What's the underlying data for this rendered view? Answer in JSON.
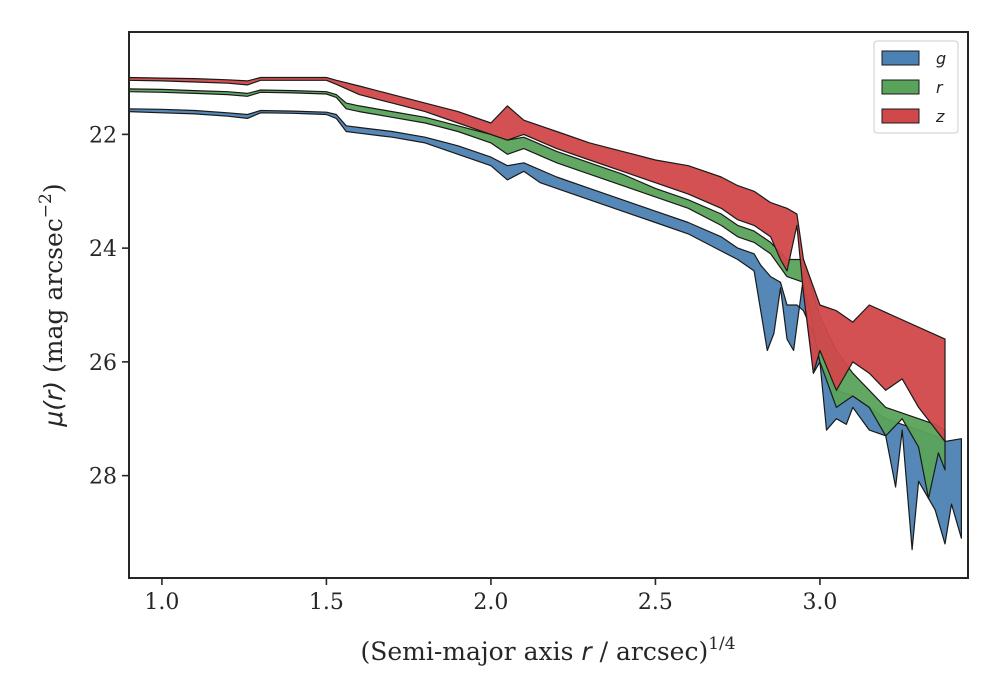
{
  "chart_data": {
    "type": "area",
    "xlabel": "(Semi-major axis r / arcsec)^{1/4}",
    "xlabel_parts": {
      "prefix": "(Semi-major axis ",
      "var": "r",
      "middle": " / arcsec)",
      "sup": "1/4"
    },
    "ylabel": "μ(r) (mag arcsec^{-2})",
    "ylabel_parts": {
      "mu": "μ(",
      "var": "r",
      "close": ")",
      "rest": " (mag arcsec",
      "sup": "−2",
      "end": ")"
    },
    "xlim": [
      0.9,
      3.45
    ],
    "ylim": [
      29.8,
      20.2
    ],
    "y_inverted": true,
    "x_ticks": [
      1.0,
      1.5,
      2.0,
      2.5,
      3.0
    ],
    "x_tick_labels": [
      "1.0",
      "1.5",
      "2.0",
      "2.5",
      "3.0"
    ],
    "y_ticks": [
      22,
      24,
      26,
      28
    ],
    "y_tick_labels": [
      "22",
      "24",
      "26",
      "28"
    ],
    "grid": false,
    "legend": {
      "position": "top-right",
      "entries": [
        "g",
        "r",
        "z"
      ]
    },
    "series": [
      {
        "name": "g",
        "color": "#4c81b3",
        "upper": [
          [
            0.9,
            21.55
          ],
          [
            1.0,
            21.56
          ],
          [
            1.1,
            21.58
          ],
          [
            1.2,
            21.62
          ],
          [
            1.26,
            21.65
          ],
          [
            1.3,
            21.58
          ],
          [
            1.4,
            21.59
          ],
          [
            1.5,
            21.61
          ],
          [
            1.53,
            21.65
          ],
          [
            1.56,
            21.85
          ],
          [
            1.6,
            21.88
          ],
          [
            1.7,
            21.95
          ],
          [
            1.8,
            22.05
          ],
          [
            1.9,
            22.2
          ],
          [
            2.0,
            22.4
          ],
          [
            2.05,
            22.55
          ],
          [
            2.1,
            22.5
          ],
          [
            2.2,
            22.75
          ],
          [
            2.3,
            22.95
          ],
          [
            2.4,
            23.15
          ],
          [
            2.5,
            23.35
          ],
          [
            2.6,
            23.55
          ],
          [
            2.7,
            23.8
          ],
          [
            2.75,
            24.0
          ],
          [
            2.8,
            24.1
          ],
          [
            2.82,
            24.3
          ],
          [
            2.85,
            24.5
          ],
          [
            2.88,
            24.6
          ],
          [
            2.9,
            25.0
          ],
          [
            2.93,
            25.0
          ],
          [
            2.95,
            25.1
          ],
          [
            2.98,
            25.5
          ],
          [
            3.0,
            26.0
          ],
          [
            3.05,
            26.5
          ],
          [
            3.1,
            26.6
          ],
          [
            3.15,
            26.8
          ],
          [
            3.2,
            27.0
          ],
          [
            3.25,
            27.1
          ],
          [
            3.3,
            27.2
          ],
          [
            3.35,
            27.3
          ],
          [
            3.38,
            27.4
          ],
          [
            3.43,
            27.35
          ]
        ],
        "lower": [
          [
            0.9,
            21.6
          ],
          [
            1.0,
            21.62
          ],
          [
            1.1,
            21.64
          ],
          [
            1.2,
            21.68
          ],
          [
            1.26,
            21.72
          ],
          [
            1.3,
            21.62
          ],
          [
            1.4,
            21.63
          ],
          [
            1.5,
            21.65
          ],
          [
            1.53,
            21.72
          ],
          [
            1.56,
            21.95
          ],
          [
            1.6,
            21.98
          ],
          [
            1.7,
            22.05
          ],
          [
            1.8,
            22.15
          ],
          [
            1.9,
            22.35
          ],
          [
            2.0,
            22.55
          ],
          [
            2.05,
            22.8
          ],
          [
            2.1,
            22.65
          ],
          [
            2.15,
            22.85
          ],
          [
            2.2,
            22.95
          ],
          [
            2.3,
            23.15
          ],
          [
            2.4,
            23.35
          ],
          [
            2.5,
            23.55
          ],
          [
            2.6,
            23.75
          ],
          [
            2.7,
            24.05
          ],
          [
            2.75,
            24.2
          ],
          [
            2.8,
            24.4
          ],
          [
            2.82,
            25.1
          ],
          [
            2.84,
            25.8
          ],
          [
            2.86,
            25.5
          ],
          [
            2.88,
            24.7
          ],
          [
            2.9,
            25.6
          ],
          [
            2.92,
            25.8
          ],
          [
            2.95,
            24.5
          ],
          [
            2.98,
            26.2
          ],
          [
            3.0,
            26.0
          ],
          [
            3.02,
            27.2
          ],
          [
            3.05,
            27.0
          ],
          [
            3.08,
            27.1
          ],
          [
            3.1,
            26.8
          ],
          [
            3.15,
            27.2
          ],
          [
            3.2,
            27.3
          ],
          [
            3.23,
            28.2
          ],
          [
            3.25,
            27.2
          ],
          [
            3.28,
            29.3
          ],
          [
            3.3,
            28.1
          ],
          [
            3.35,
            28.6
          ],
          [
            3.38,
            29.2
          ],
          [
            3.4,
            28.5
          ],
          [
            3.43,
            29.1
          ]
        ]
      },
      {
        "name": "r",
        "color": "#5aa35a",
        "upper": [
          [
            0.9,
            21.2
          ],
          [
            1.0,
            21.21
          ],
          [
            1.1,
            21.23
          ],
          [
            1.2,
            21.25
          ],
          [
            1.26,
            21.28
          ],
          [
            1.3,
            21.22
          ],
          [
            1.4,
            21.23
          ],
          [
            1.5,
            21.25
          ],
          [
            1.53,
            21.3
          ],
          [
            1.56,
            21.45
          ],
          [
            1.6,
            21.5
          ],
          [
            1.7,
            21.6
          ],
          [
            1.8,
            21.7
          ],
          [
            1.9,
            21.85
          ],
          [
            2.0,
            22.0
          ],
          [
            2.05,
            22.1
          ],
          [
            2.1,
            22.05
          ],
          [
            2.2,
            22.3
          ],
          [
            2.3,
            22.5
          ],
          [
            2.4,
            22.7
          ],
          [
            2.5,
            22.95
          ],
          [
            2.6,
            23.15
          ],
          [
            2.7,
            23.4
          ],
          [
            2.75,
            23.6
          ],
          [
            2.8,
            23.7
          ],
          [
            2.85,
            23.9
          ],
          [
            2.9,
            24.2
          ],
          [
            2.95,
            24.2
          ],
          [
            3.0,
            25.2
          ],
          [
            3.05,
            25.8
          ],
          [
            3.1,
            26.2
          ],
          [
            3.15,
            26.5
          ],
          [
            3.2,
            26.8
          ],
          [
            3.25,
            26.9
          ],
          [
            3.3,
            27.0
          ],
          [
            3.35,
            27.1
          ],
          [
            3.38,
            27.2
          ]
        ],
        "lower": [
          [
            0.9,
            21.25
          ],
          [
            1.0,
            21.26
          ],
          [
            1.1,
            21.28
          ],
          [
            1.2,
            21.3
          ],
          [
            1.26,
            21.33
          ],
          [
            1.3,
            21.26
          ],
          [
            1.4,
            21.27
          ],
          [
            1.5,
            21.29
          ],
          [
            1.53,
            21.35
          ],
          [
            1.56,
            21.55
          ],
          [
            1.6,
            21.6
          ],
          [
            1.7,
            21.7
          ],
          [
            1.8,
            21.8
          ],
          [
            1.9,
            21.95
          ],
          [
            2.0,
            22.15
          ],
          [
            2.05,
            22.35
          ],
          [
            2.1,
            22.25
          ],
          [
            2.2,
            22.5
          ],
          [
            2.3,
            22.7
          ],
          [
            2.4,
            22.9
          ],
          [
            2.5,
            23.1
          ],
          [
            2.6,
            23.3
          ],
          [
            2.7,
            23.6
          ],
          [
            2.75,
            23.8
          ],
          [
            2.8,
            23.9
          ],
          [
            2.85,
            24.1
          ],
          [
            2.9,
            24.5
          ],
          [
            2.95,
            24.6
          ],
          [
            3.0,
            26.0
          ],
          [
            3.05,
            26.8
          ],
          [
            3.1,
            26.6
          ],
          [
            3.15,
            26.8
          ],
          [
            3.2,
            27.3
          ],
          [
            3.25,
            27.0
          ],
          [
            3.3,
            27.5
          ],
          [
            3.33,
            28.4
          ],
          [
            3.36,
            27.6
          ],
          [
            3.38,
            27.9
          ]
        ]
      },
      {
        "name": "z",
        "color": "#d1484a",
        "upper": [
          [
            0.9,
            21.0
          ],
          [
            1.0,
            21.01
          ],
          [
            1.1,
            21.02
          ],
          [
            1.2,
            21.04
          ],
          [
            1.26,
            21.06
          ],
          [
            1.3,
            21.0
          ],
          [
            1.4,
            21.0
          ],
          [
            1.5,
            21.0
          ],
          [
            1.53,
            21.05
          ],
          [
            1.6,
            21.15
          ],
          [
            1.7,
            21.3
          ],
          [
            1.8,
            21.45
          ],
          [
            1.9,
            21.6
          ],
          [
            2.0,
            21.8
          ],
          [
            2.05,
            21.5
          ],
          [
            2.1,
            21.75
          ],
          [
            2.2,
            21.95
          ],
          [
            2.3,
            22.15
          ],
          [
            2.4,
            22.3
          ],
          [
            2.5,
            22.45
          ],
          [
            2.6,
            22.55
          ],
          [
            2.7,
            22.75
          ],
          [
            2.75,
            22.9
          ],
          [
            2.8,
            23.0
          ],
          [
            2.85,
            23.2
          ],
          [
            2.9,
            23.3
          ],
          [
            2.93,
            23.4
          ],
          [
            2.95,
            24.2
          ],
          [
            3.0,
            25.0
          ],
          [
            3.05,
            25.1
          ],
          [
            3.1,
            25.3
          ],
          [
            3.15,
            25.0
          ],
          [
            3.38,
            25.6
          ]
        ],
        "lower": [
          [
            0.9,
            21.05
          ],
          [
            1.0,
            21.06
          ],
          [
            1.1,
            21.08
          ],
          [
            1.2,
            21.1
          ],
          [
            1.26,
            21.13
          ],
          [
            1.3,
            21.05
          ],
          [
            1.4,
            21.05
          ],
          [
            1.5,
            21.05
          ],
          [
            1.53,
            21.12
          ],
          [
            1.6,
            21.3
          ],
          [
            1.7,
            21.45
          ],
          [
            1.8,
            21.6
          ],
          [
            1.9,
            21.8
          ],
          [
            2.0,
            22.0
          ],
          [
            2.05,
            22.1
          ],
          [
            2.1,
            22.0
          ],
          [
            2.2,
            22.25
          ],
          [
            2.3,
            22.45
          ],
          [
            2.4,
            22.65
          ],
          [
            2.5,
            22.85
          ],
          [
            2.6,
            23.05
          ],
          [
            2.7,
            23.3
          ],
          [
            2.75,
            23.5
          ],
          [
            2.8,
            23.6
          ],
          [
            2.85,
            23.8
          ],
          [
            2.88,
            24.2
          ],
          [
            2.9,
            24.4
          ],
          [
            2.93,
            23.6
          ],
          [
            2.95,
            24.8
          ],
          [
            2.98,
            26.2
          ],
          [
            3.0,
            25.8
          ],
          [
            3.05,
            26.5
          ],
          [
            3.1,
            26.0
          ],
          [
            3.15,
            26.2
          ],
          [
            3.2,
            26.5
          ],
          [
            3.25,
            26.3
          ],
          [
            3.3,
            26.8
          ],
          [
            3.38,
            27.4
          ]
        ]
      }
    ]
  }
}
